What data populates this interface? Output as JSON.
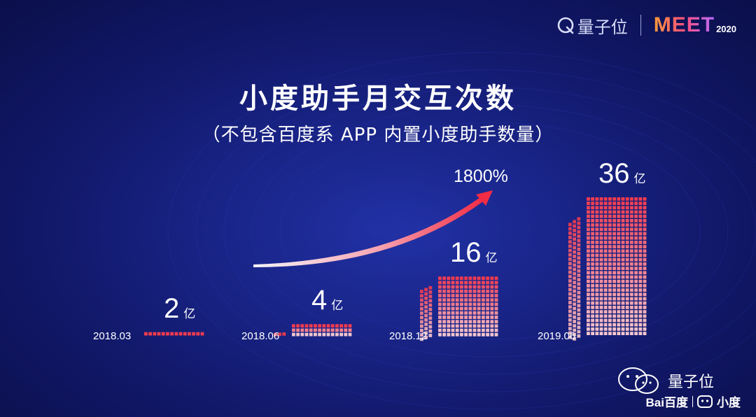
{
  "header": {
    "qbit_logo_text": "量子位",
    "meet_text": "MEET",
    "meet_year": "2020"
  },
  "title": "小度助手月交互次数",
  "subtitle": "（不包含百度系 APP 内置小度助手数量）",
  "growth_label": "1800%",
  "unit": "亿",
  "chart_data": {
    "type": "bar",
    "title": "小度助手月交互次数",
    "subtitle": "（不包含百度系 APP 内置小度助手数量）",
    "categories": [
      "2018.03",
      "2018.06",
      "2018.12",
      "2019.06"
    ],
    "values": [
      2,
      4,
      16,
      36
    ],
    "value_labels": [
      "2",
      "4",
      "16",
      "36"
    ],
    "unit": "亿",
    "annotation": "1800%",
    "ylim": [
      0,
      36
    ],
    "grid": false,
    "colors": {
      "bar_top": "#f23a4e",
      "bar_bottom": "#f3c6cf",
      "background": "#141b77"
    }
  },
  "footer": {
    "wechat_name": "量子位",
    "baidu_brand": "Bai百度",
    "xiaodu_brand": "小度"
  }
}
